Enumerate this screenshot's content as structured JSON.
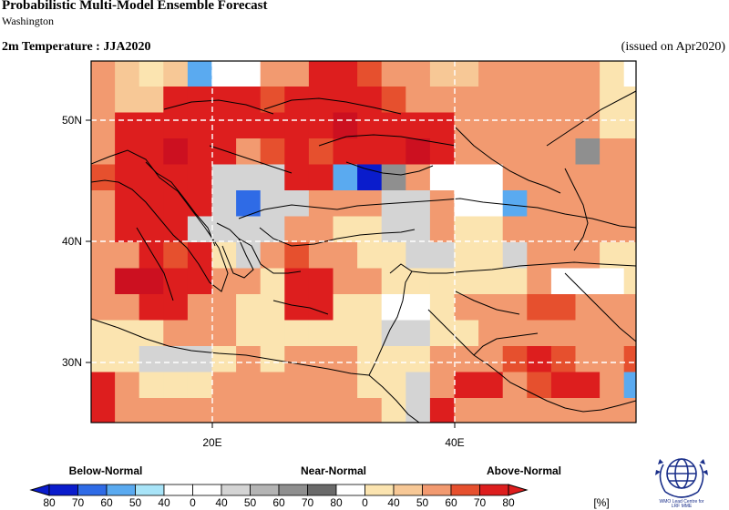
{
  "header": {
    "title": "Probabilistic Multi-Model Ensemble Forecast",
    "subtitle": "Washington",
    "variable": "2m Temperature : JJA2020",
    "issued": "(issued on Apr2020)"
  },
  "map": {
    "lat_labels": [
      "50N",
      "40N",
      "30N"
    ],
    "lon_labels": [
      "20E",
      "40E"
    ]
  },
  "legend": {
    "below_label": "Below-Normal",
    "near_label": "Near-Normal",
    "above_label": "Above-Normal",
    "unit": "[%]",
    "ticks": [
      "80",
      "70",
      "60",
      "50",
      "40",
      "0",
      "40",
      "50",
      "60",
      "70",
      "80",
      "0",
      "40",
      "50",
      "60",
      "70",
      "80"
    ],
    "colors": {
      "below": [
        "#0a1ccc",
        "#2f6be6",
        "#5aaaf0",
        "#a8e4f8",
        "#ffffff"
      ],
      "near": [
        "#ffffff",
        "#d4d4d4",
        "#b4b4b4",
        "#8f8f8f",
        "#6a6a6a",
        "#ffffff"
      ],
      "above": [
        "#fbe4b0",
        "#f7c896",
        "#f29a70",
        "#e6502e",
        "#dd1e1e"
      ]
    }
  },
  "logo": {
    "text_line1": "WMO Lead Centre for",
    "text_line2": "LRF MME"
  }
}
